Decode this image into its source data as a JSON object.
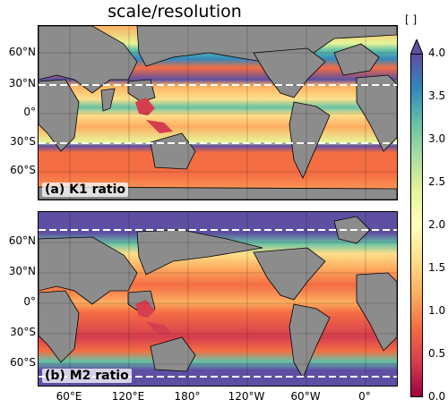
{
  "title": "scale/resolution",
  "colorbar": {
    "unit": "[  ]",
    "ticks": [
      "4.0",
      "3.5",
      "3.0",
      "2.5",
      "2.0",
      "1.5",
      "1.0",
      "0.5",
      "0.0"
    ],
    "min": 0.0,
    "max": 4.0,
    "extend": "max",
    "colormap": "Spectral",
    "colors": [
      "#9e0142",
      "#d53e4f",
      "#f46d43",
      "#fdae61",
      "#fee08b",
      "#ffffbf",
      "#e6f598",
      "#abdda4",
      "#66c2a5",
      "#3288bd",
      "#5e4fa2"
    ]
  },
  "panels": [
    {
      "label": "(a) K1 ratio",
      "ytick_labels": [
        "60°N",
        "30°N",
        "0°",
        "30°S",
        "60°S"
      ],
      "critical_latitudes": [
        "30°N",
        "30°S"
      ]
    },
    {
      "label": "(b) M2 ratio",
      "ytick_labels": [
        "60°N",
        "30°N",
        "0°",
        "30°S",
        "60°S"
      ],
      "critical_latitudes": [
        "75°N",
        "75°S"
      ]
    }
  ],
  "xtick_labels": [
    "60°E",
    "120°E",
    "180°",
    "120°W",
    "60°W",
    "0°"
  ],
  "land_color": "#8c8c8c"
}
